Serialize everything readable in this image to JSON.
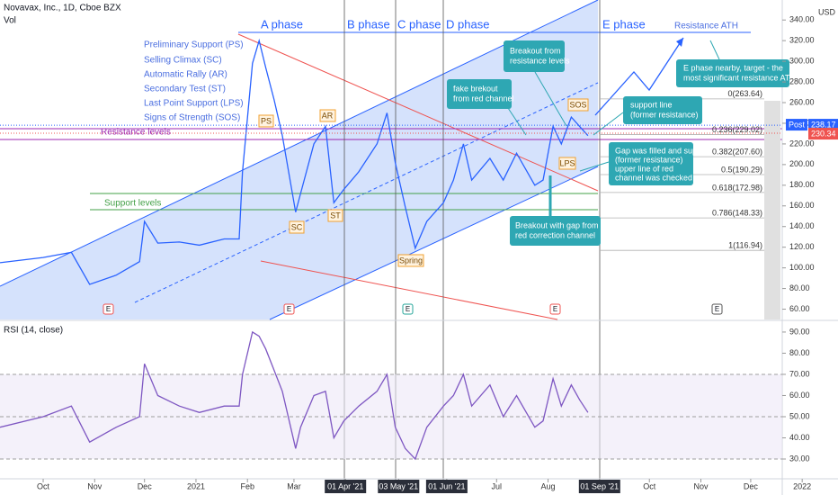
{
  "header": {
    "title": "Novavax, Inc., 1D, Cboe BZX",
    "volume_label": "Vol",
    "currency": "USD"
  },
  "chart_data": [
    {
      "type": "line",
      "color": "#2962ff",
      "x": [
        "2020-09-05",
        "2020-10-01",
        "2020-10-18",
        "2020-10-29",
        "2020-11-14",
        "2020-11-28",
        "2020-12-01",
        "2020-12-09",
        "2020-12-22",
        "2021-01-03",
        "2021-01-18",
        "2021-01-27",
        "2021-01-29",
        "2021-02-04",
        "2021-02-08",
        "2021-02-12",
        "2021-02-17",
        "2021-02-22",
        "2021-03-02",
        "2021-03-05",
        "2021-03-13",
        "2021-03-20",
        "2021-03-25",
        "2021-03-31",
        "2021-04-09",
        "2021-04-20",
        "2021-04-26",
        "2021-05-01",
        "2021-05-07",
        "2021-05-13",
        "2021-05-20",
        "2021-05-30",
        "2021-06-05",
        "2021-06-11",
        "2021-06-16",
        "2021-06-27",
        "2021-07-05",
        "2021-07-13",
        "2021-07-24",
        "2021-07-29",
        "2021-08-04",
        "2021-08-09",
        "2021-08-15",
        "2021-08-20",
        "2021-08-25"
      ],
      "values": [
        105,
        110,
        115,
        84,
        93,
        106,
        145,
        124,
        125,
        122,
        128,
        128,
        193,
        298,
        320,
        294,
        263,
        228,
        154,
        172,
        220,
        237,
        163,
        176,
        193,
        220,
        250,
        202,
        159,
        119,
        145,
        163,
        185,
        220,
        185,
        206,
        185,
        211,
        180,
        185,
        237,
        220,
        246,
        237,
        228
      ],
      "xlim": [
        "2020-09-05",
        "2021-12-20"
      ],
      "xticks": [
        {
          "value": "2020-10-01",
          "label": "Oct"
        },
        {
          "value": "2020-11-01",
          "label": "Nov"
        },
        {
          "value": "2020-12-01",
          "label": "Dec"
        },
        {
          "value": "2021-01-01",
          "label": "2021"
        },
        {
          "value": "2021-02-01",
          "label": "Feb"
        },
        {
          "value": "2021-03-01",
          "label": "Mar"
        },
        {
          "value": "2021-04-01",
          "label": "01 Apr '21",
          "highlighted": true
        },
        {
          "value": "2021-05-03",
          "label": "03 May '21",
          "highlighted": true
        },
        {
          "value": "2021-06-01",
          "label": "01 Jun '21",
          "highlighted": true
        },
        {
          "value": "2021-07-01",
          "label": "Jul"
        },
        {
          "value": "2021-08-01",
          "label": "Aug"
        },
        {
          "value": "2021-09-01",
          "label": "01 Sep '21",
          "highlighted": true
        },
        {
          "value": "2021-10-01",
          "label": "Oct"
        },
        {
          "value": "2021-11-01",
          "label": "Nov"
        },
        {
          "value": "2021-12-01",
          "label": "Dec"
        },
        {
          "value": "2022-01-01",
          "label": "2022"
        }
      ],
      "ylim": [
        50,
        355
      ],
      "yticks": [
        {
          "value": 60,
          "label": "60.00"
        },
        {
          "value": 80,
          "label": "80.00"
        },
        {
          "value": 100,
          "label": "100.00"
        },
        {
          "value": 120,
          "label": "120.00"
        },
        {
          "value": 140,
          "label": "140.00"
        },
        {
          "value": 160,
          "label": "160.00"
        },
        {
          "value": 180,
          "label": "180.00"
        },
        {
          "value": 200,
          "label": "200.00"
        },
        {
          "value": 220,
          "label": "220.00"
        },
        {
          "value": 240,
          "label": "240.00"
        },
        {
          "value": 260,
          "label": "260.00"
        },
        {
          "value": 280,
          "label": "280.00"
        },
        {
          "value": 300,
          "label": "300.00"
        },
        {
          "value": 320,
          "label": "320.00"
        },
        {
          "value": 340,
          "label": "340.00"
        }
      ],
      "fib_levels": [
        {
          "value": 263.64,
          "label": "0(263.64)"
        },
        {
          "value": 229.02,
          "label": "0.236(229.02)"
        },
        {
          "value": 207.6,
          "label": "0.382(207.60)"
        },
        {
          "value": 190.29,
          "label": "0.5(190.29)"
        },
        {
          "value": 172.98,
          "label": "0.618(172.98)"
        },
        {
          "value": 148.33,
          "label": "0.786(148.33)"
        },
        {
          "value": 116.94,
          "label": "1(116.94)"
        }
      ],
      "last_price": {
        "label": "Post",
        "value": 238.17,
        "close": 230.34
      },
      "annotations": {
        "phases": [
          "A phase",
          "B phase",
          "C phase",
          "D phase",
          "E phase"
        ],
        "resistance_ath": "Resistance ATH",
        "wyckoff_legend": [
          "Preliminary Support (PS)",
          "Selling Climax (SC)",
          "Automatic Rally (AR)",
          "Secondary Test (ST)",
          "Last Point Support (LPS)",
          "Signs of Strength (SOS)"
        ],
        "resistance_levels": "Resistance levels",
        "support_levels": "Support levels",
        "tags": [
          "PS",
          "SC",
          "AR",
          "ST",
          "Spring",
          "LPS",
          "SOS"
        ],
        "callout_breakout": [
          "Breakout from",
          "resistance levels"
        ],
        "callout_fake": [
          "fake brekout",
          "from red channel"
        ],
        "callout_support": [
          "support line",
          "(former resistance)"
        ],
        "callout_target": [
          "E phase nearby, target - the",
          "most significant resistance ATH"
        ],
        "callout_gap": [
          "Gap was filled and support",
          "(former resistance)",
          "upper line of red",
          "channel was checked"
        ],
        "callout_gap_breakout": [
          "Breakout with gap from",
          "red correction channel"
        ],
        "earnings_marker": "E"
      }
    },
    {
      "type": "line",
      "title": "RSI (14, close)",
      "color": "#7e57c2",
      "values": [
        45,
        50,
        55,
        38,
        45,
        50,
        75,
        60,
        55,
        52,
        55,
        55,
        70,
        90,
        88,
        82,
        72,
        62,
        35,
        45,
        60,
        62,
        40,
        48,
        55,
        62,
        70,
        45,
        35,
        30,
        45,
        55,
        60,
        70,
        55,
        65,
        50,
        60,
        45,
        48,
        68,
        55,
        65,
        58,
        52
      ],
      "ylim": [
        21.5,
        93.8
      ],
      "yticks": [
        {
          "value": 30,
          "label": "30.00"
        },
        {
          "value": 40,
          "label": "40.00"
        },
        {
          "value": 50,
          "label": "50.00"
        },
        {
          "value": 60,
          "label": "60.00"
        },
        {
          "value": 70,
          "label": "70.00"
        },
        {
          "value": 80,
          "label": "80.00"
        },
        {
          "value": 90,
          "label": "90.00"
        }
      ]
    }
  ]
}
